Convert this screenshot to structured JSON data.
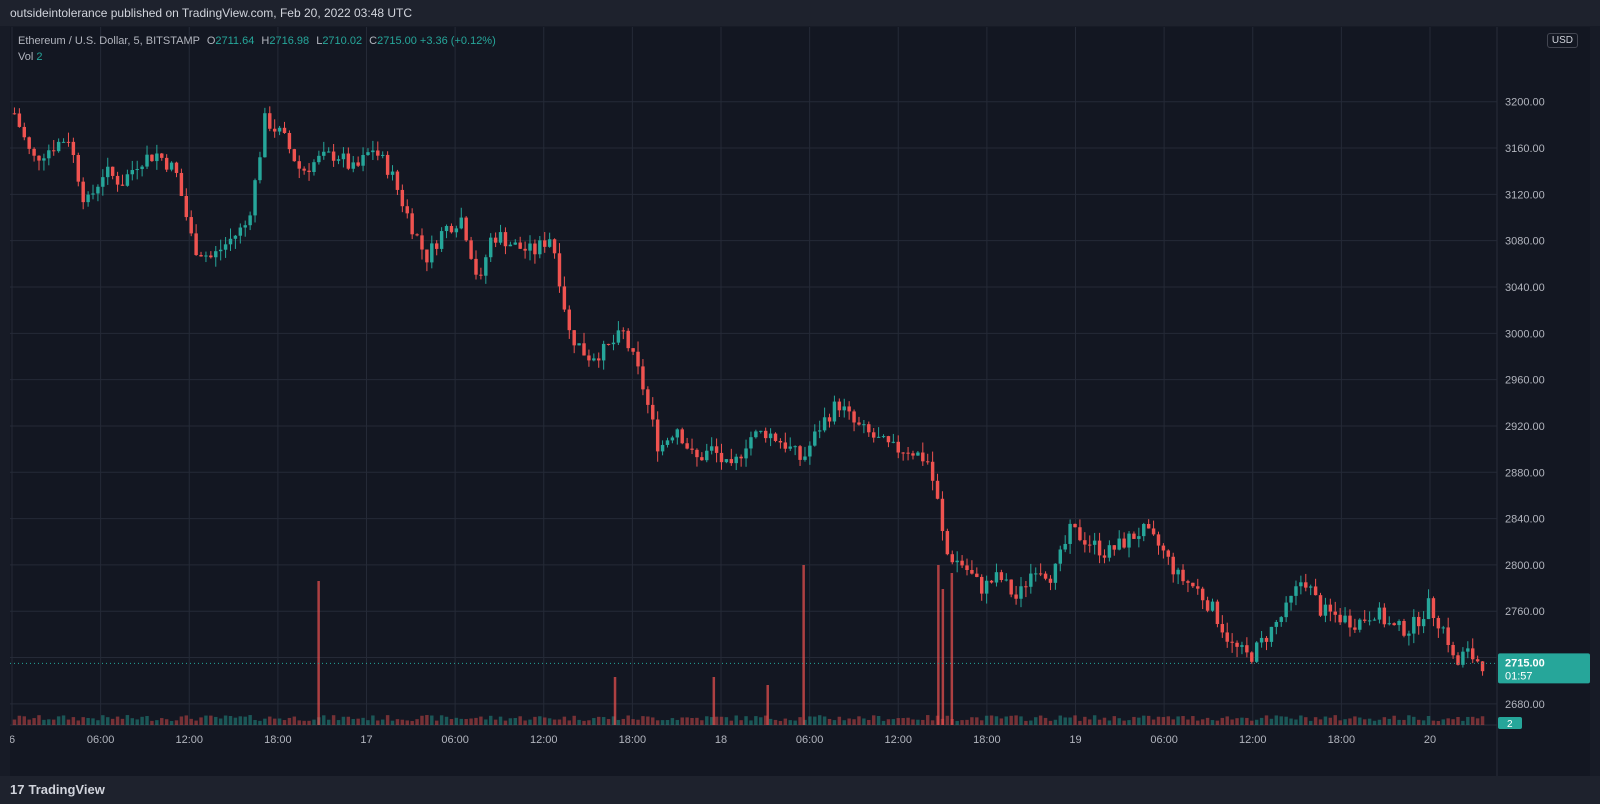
{
  "header": {
    "publish_line": "outsideintolerance published on TradingView.com, Feb 20, 2022 03:48 UTC"
  },
  "legend": {
    "symbol": "Ethereum / U.S. Dollar, 5, BITSTAMP",
    "o_label": "O",
    "o": "2711.64",
    "h_label": "H",
    "h": "2716.98",
    "l_label": "L",
    "l": "2710.02",
    "c_label": "C",
    "c": "2715.00",
    "change": "+3.36 (+0.12%)",
    "vol_label": "Vol",
    "vol": "2"
  },
  "currency_button": "USD",
  "footer": {
    "brand": "TradingView",
    "brand_mark": "17"
  },
  "colors": {
    "up": "#26a69a",
    "down": "#ef5350",
    "grid": "#252a37",
    "axis_text": "#b2b5be",
    "bg": "#131722"
  },
  "chart_data": {
    "type": "candlestick",
    "symbol": "ETHUSD",
    "interval_minutes": 5,
    "ylim": [
      2660,
      3230
    ],
    "y_ticks": [
      "3200.00",
      "3160.00",
      "3120.00",
      "3080.00",
      "3040.00",
      "3000.00",
      "2960.00",
      "2920.00",
      "2880.00",
      "2840.00",
      "2800.00",
      "2760.00",
      "2720.00",
      "2680.00"
    ],
    "x_ticks": [
      "6",
      "06:00",
      "12:00",
      "18:00",
      "17",
      "06:00",
      "12:00",
      "18:00",
      "18",
      "06:00",
      "12:00",
      "18:00",
      "19",
      "06:00",
      "12:00",
      "18:00",
      "20"
    ],
    "last_price": {
      "value": 2715.0,
      "label": "2715.00",
      "countdown": "01:57"
    },
    "volume_last": "2",
    "path": [
      [
        0,
        3190
      ],
      [
        2,
        3150
      ],
      [
        4,
        3160
      ],
      [
        6,
        3170
      ],
      [
        8,
        3110
      ],
      [
        10,
        3140
      ],
      [
        12,
        3130
      ],
      [
        14,
        3150
      ],
      [
        16,
        3155
      ],
      [
        18,
        3140
      ],
      [
        20,
        3075
      ],
      [
        22,
        3065
      ],
      [
        24,
        3080
      ],
      [
        26,
        3095
      ],
      [
        27,
        3135
      ],
      [
        28,
        3185
      ],
      [
        30,
        3170
      ],
      [
        32,
        3140
      ],
      [
        34,
        3150
      ],
      [
        36,
        3155
      ],
      [
        38,
        3140
      ],
      [
        40,
        3160
      ],
      [
        42,
        3140
      ],
      [
        44,
        3100
      ],
      [
        46,
        3065
      ],
      [
        48,
        3090
      ],
      [
        50,
        3100
      ],
      [
        52,
        3040
      ],
      [
        53,
        3080
      ],
      [
        54,
        3085
      ],
      [
        56,
        3075
      ],
      [
        58,
        3070
      ],
      [
        60,
        3085
      ],
      [
        62,
        3000
      ],
      [
        64,
        2980
      ],
      [
        66,
        2985
      ],
      [
        68,
        3000
      ],
      [
        70,
        2960
      ],
      [
        72,
        2900
      ],
      [
        74,
        2920
      ],
      [
        76,
        2890
      ],
      [
        78,
        2900
      ],
      [
        80,
        2880
      ],
      [
        82,
        2910
      ],
      [
        84,
        2915
      ],
      [
        86,
        2905
      ],
      [
        88,
        2890
      ],
      [
        90,
        2920
      ],
      [
        92,
        2940
      ],
      [
        94,
        2920
      ],
      [
        96,
        2910
      ],
      [
        98,
        2900
      ],
      [
        100,
        2900
      ],
      [
        102,
        2890
      ],
      [
        103,
        2860
      ],
      [
        104,
        2810
      ],
      [
        106,
        2800
      ],
      [
        108,
        2780
      ],
      [
        110,
        2790
      ],
      [
        112,
        2770
      ],
      [
        114,
        2800
      ],
      [
        116,
        2790
      ],
      [
        118,
        2830
      ],
      [
        120,
        2820
      ],
      [
        122,
        2810
      ],
      [
        124,
        2820
      ],
      [
        126,
        2830
      ],
      [
        128,
        2815
      ],
      [
        130,
        2790
      ],
      [
        132,
        2780
      ],
      [
        134,
        2760
      ],
      [
        136,
        2730
      ],
      [
        138,
        2720
      ],
      [
        140,
        2740
      ],
      [
        142,
        2760
      ],
      [
        144,
        2790
      ],
      [
        146,
        2760
      ],
      [
        148,
        2755
      ],
      [
        150,
        2750
      ],
      [
        152,
        2760
      ],
      [
        154,
        2745
      ],
      [
        156,
        2745
      ],
      [
        158,
        2765
      ],
      [
        160,
        2740
      ],
      [
        161,
        2710
      ],
      [
        162,
        2725
      ],
      [
        164,
        2715
      ]
    ],
    "volume_spikes": [
      {
        "x": 34,
        "value": 0.9
      },
      {
        "x": 88,
        "value": 1.0
      },
      {
        "x": 103,
        "value": 1.0
      },
      {
        "x": 103.5,
        "value": 0.85
      },
      {
        "x": 104.5,
        "value": 0.95
      },
      {
        "x": 67,
        "value": 0.3
      },
      {
        "x": 78,
        "value": 0.3
      },
      {
        "x": 84,
        "value": 0.25
      }
    ]
  }
}
